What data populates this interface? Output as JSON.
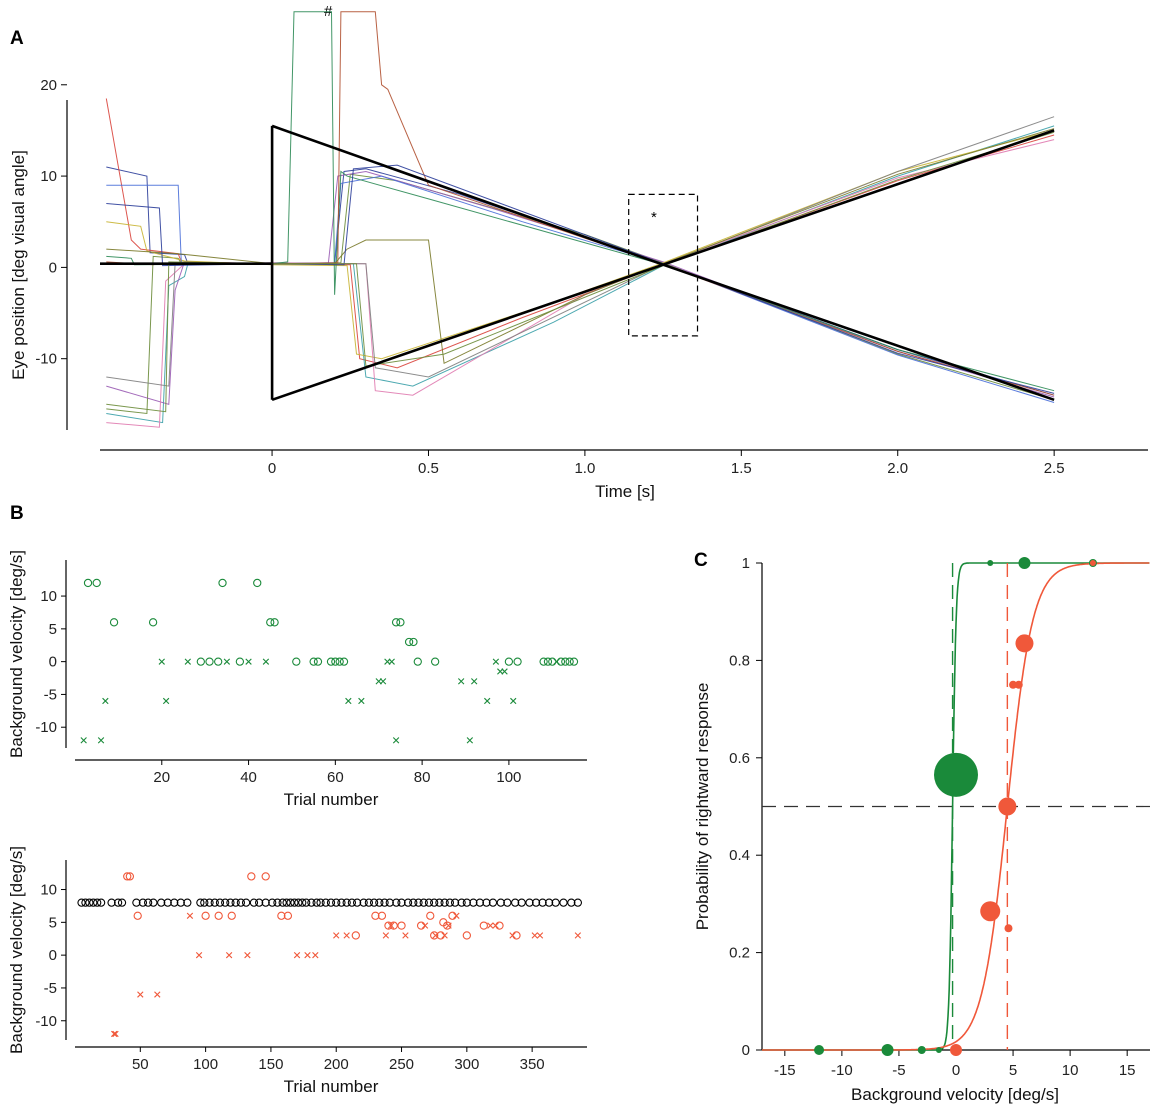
{
  "colors": {
    "green": "#1a8a3a",
    "red": "#f0583a",
    "black": "#000000",
    "axis": "#000000"
  },
  "panels": {
    "A": {
      "label": "A",
      "hash_mark": "#",
      "star_mark": "*"
    },
    "B": {
      "label": "B"
    },
    "C": {
      "label": "C"
    }
  },
  "chart_data": [
    {
      "id": "A",
      "type": "line",
      "title": "",
      "xlabel": "Time [s]",
      "ylabel": "Eye position [deg visual angle]",
      "xlim": [
        -0.55,
        2.8
      ],
      "ylim": [
        -20,
        26
      ],
      "xticks": [
        0,
        0.5,
        1.0,
        1.5,
        2.0,
        2.5
      ],
      "xtick_labels": [
        "0",
        "0.5",
        "1.0",
        "1.5",
        "2.0",
        "2.5"
      ],
      "yticks": [
        -10,
        0,
        10,
        20
      ],
      "ytick_labels": [
        "-10",
        "0",
        "10",
        "20"
      ],
      "stimulus": {
        "fixation": {
          "x": [
            -0.55,
            0.0
          ],
          "y": [
            0.4,
            0.4
          ]
        },
        "jump_up": {
          "x": [
            0.0,
            0.0
          ],
          "y": [
            0.4,
            15.5
          ]
        },
        "jump_down": {
          "x": [
            0.0,
            0.0
          ],
          "y": [
            0.4,
            -14.5
          ]
        },
        "upper_ramp": {
          "x": [
            0.0,
            1.25,
            2.5
          ],
          "y": [
            15.5,
            0.3,
            -14.5
          ]
        },
        "lower_ramp": {
          "x": [
            0.0,
            1.25,
            2.5
          ],
          "y": [
            -14.5,
            0.3,
            15.0
          ]
        }
      },
      "annotation_box": {
        "x": [
          1.14,
          1.36
        ],
        "y": [
          -7.5,
          8.0
        ]
      },
      "trace_colors": [
        "#2c3e9a",
        "#6b8c3a",
        "#d9443c",
        "#3aa0a8",
        "#9a5cb4",
        "#c8b432",
        "#e07bb0",
        "#4a6fd8",
        "#808080",
        "#2e8b57",
        "#b05030",
        "#7a7a2a"
      ],
      "traces": [
        {
          "x": [
            -0.53,
            -0.4,
            -0.39,
            -0.28,
            -0.27,
            0.0,
            0.2,
            0.23,
            0.3,
            0.6,
            1.25,
            2.0,
            2.5
          ],
          "y": [
            11.0,
            10.0,
            1.6,
            1.4,
            0.5,
            0.4,
            0.4,
            10.5,
            10.8,
            8.0,
            0.4,
            -9.0,
            -14.0
          ]
        },
        {
          "x": [
            -0.53,
            -0.4,
            -0.38,
            -0.3,
            -0.29,
            0.0,
            0.22,
            0.25,
            0.4,
            1.0,
            1.25,
            2.0,
            2.5
          ],
          "y": [
            -15.5,
            -16.0,
            1.2,
            1.0,
            0.4,
            0.4,
            0.5,
            10.2,
            9.5,
            3.6,
            0.5,
            -9.5,
            -14.5
          ]
        },
        {
          "x": [
            -0.53,
            -0.45,
            -0.42,
            -0.3,
            -0.29,
            0.0,
            0.25,
            0.28,
            0.4,
            0.8,
            1.25,
            2.0,
            2.5
          ],
          "y": [
            18.5,
            3.0,
            2.0,
            1.5,
            0.6,
            0.4,
            0.3,
            -10.0,
            -11.0,
            -5.5,
            0.3,
            9.5,
            14.5
          ]
        },
        {
          "x": [
            -0.53,
            -0.35,
            -0.33,
            -0.28,
            -0.27,
            0.0,
            0.26,
            0.3,
            0.45,
            0.9,
            1.25,
            2.0,
            2.5
          ],
          "y": [
            -16.0,
            -17.0,
            -2.0,
            -1.0,
            0.3,
            0.5,
            0.4,
            -12.0,
            -13.0,
            -6.0,
            0.2,
            10.0,
            15.5
          ]
        },
        {
          "x": [
            -0.53,
            -0.33,
            -0.31,
            -0.28,
            0.0,
            0.18,
            0.21,
            0.3,
            0.7,
            1.25,
            2.0,
            2.5
          ],
          "y": [
            -13.0,
            -15.0,
            -2.5,
            0.6,
            0.4,
            0.5,
            10.0,
            10.5,
            6.5,
            0.6,
            -9.2,
            -14.2
          ]
        },
        {
          "x": [
            -0.53,
            -0.42,
            -0.4,
            -0.28,
            0.0,
            0.24,
            0.27,
            0.35,
            0.9,
            1.25,
            2.0,
            2.5
          ],
          "y": [
            5.0,
            4.5,
            1.8,
            0.7,
            0.3,
            0.2,
            -9.5,
            -10.0,
            -3.8,
            0.5,
            10.5,
            15.0
          ]
        },
        {
          "x": [
            -0.53,
            -0.36,
            -0.34,
            -0.28,
            0.0,
            0.3,
            0.33,
            0.45,
            1.0,
            1.25,
            2.0,
            2.5
          ],
          "y": [
            -17.0,
            -17.5,
            -1.5,
            0.4,
            0.5,
            0.4,
            -13.5,
            -14.0,
            -3.0,
            0.4,
            9.8,
            14.0
          ]
        },
        {
          "x": [
            -0.53,
            -0.3,
            -0.29,
            0.0,
            0.2,
            0.22,
            0.35,
            0.8,
            1.25,
            2.0,
            2.5
          ],
          "y": [
            9.0,
            9.0,
            0.5,
            0.4,
            0.5,
            9.2,
            10.0,
            5.0,
            0.4,
            -9.6,
            -14.8
          ]
        },
        {
          "x": [
            -0.53,
            -0.33,
            -0.31,
            0.0,
            0.3,
            0.33,
            0.5,
            1.25,
            2.0,
            2.5
          ],
          "y": [
            -12.0,
            -13.0,
            0.4,
            0.4,
            0.4,
            -11.0,
            -12.0,
            0.3,
            10.5,
            16.5
          ]
        },
        {
          "x": [
            -0.53,
            -0.45,
            -0.44,
            0.0,
            0.05,
            0.07,
            0.19,
            0.2,
            0.22,
            0.24,
            0.5,
            1.25,
            2.0,
            2.5
          ],
          "y": [
            1.2,
            1.0,
            0.3,
            0.4,
            0.6,
            28.0,
            28.0,
            -3.0,
            10.5,
            10.0,
            7.5,
            0.3,
            -9.0,
            -13.5
          ]
        },
        {
          "x": [
            -0.53,
            -0.38,
            -0.36,
            0.0,
            0.21,
            0.22,
            0.33,
            0.35,
            0.37,
            0.5,
            1.25,
            2.0,
            2.5
          ],
          "y": [
            0.6,
            0.3,
            0.4,
            0.4,
            0.5,
            28.0,
            28.0,
            20.0,
            19.5,
            9.0,
            0.3,
            -9.2,
            -14.0
          ]
        },
        {
          "x": [
            -0.53,
            -0.3,
            0.0,
            0.2,
            0.24,
            0.3,
            0.5,
            0.55,
            1.0,
            1.25,
            2.0,
            2.5
          ],
          "y": [
            2.0,
            1.5,
            0.4,
            0.4,
            2.0,
            3.0,
            3.0,
            -10.5,
            -3.0,
            0.4,
            10.2,
            15.2
          ]
        },
        {
          "x": [
            -0.53,
            -0.36,
            -0.35,
            0.0,
            0.23,
            0.26,
            0.4,
            1.25,
            2.0,
            2.5
          ],
          "y": [
            7.0,
            6.5,
            0.2,
            0.4,
            0.3,
            10.8,
            11.2,
            0.4,
            -9.4,
            -13.8
          ]
        },
        {
          "x": [
            -0.53,
            -0.34,
            -0.33,
            0.0,
            0.27,
            0.3,
            0.55,
            1.25,
            2.0,
            2.5
          ],
          "y": [
            -15.0,
            -15.8,
            0.6,
            0.4,
            0.4,
            -10.8,
            -9.5,
            0.2,
            9.6,
            14.8
          ]
        }
      ]
    },
    {
      "id": "B-top",
      "type": "scatter",
      "xlabel": "Trial number",
      "ylabel": "Background velocity [deg/s]",
      "xlim": [
        0,
        118
      ],
      "ylim": [
        -15,
        15.5
      ],
      "xticks": [
        20,
        40,
        60,
        80,
        100
      ],
      "xtick_labels": [
        "20",
        "40",
        "60",
        "80",
        "100"
      ],
      "yticks": [
        -10,
        -5,
        0,
        5,
        10
      ],
      "ytick_labels": [
        "-10",
        "-5",
        "0",
        "5",
        "10"
      ],
      "series": [
        {
          "name": "circle",
          "marker": "o",
          "color": "#1a8a3a",
          "x": [
            3,
            5,
            9,
            18,
            29,
            31,
            33,
            34,
            38,
            42,
            45,
            46,
            51,
            55,
            56,
            59,
            60,
            61,
            62,
            74,
            75,
            77,
            78,
            79,
            83,
            100,
            102,
            108,
            109,
            110,
            112,
            113,
            114,
            115
          ],
          "y": [
            12,
            12,
            6,
            6,
            0,
            0,
            0,
            12,
            0,
            12,
            6,
            6,
            0,
            0,
            0,
            0,
            0,
            0,
            0,
            6,
            6,
            3,
            3,
            0,
            0,
            0,
            0,
            0,
            0,
            0,
            0,
            0,
            0,
            0
          ]
        },
        {
          "name": "cross",
          "marker": "x",
          "color": "#1a8a3a",
          "x": [
            2,
            6,
            7,
            20,
            21,
            26,
            35,
            40,
            44,
            63,
            66,
            70,
            71,
            72,
            73,
            74,
            89,
            91,
            92,
            95,
            97,
            98,
            99,
            101,
            111
          ],
          "y": [
            -12,
            -12,
            -6,
            0,
            -6,
            0,
            0,
            0,
            0,
            -6,
            -6,
            -3,
            -3,
            0,
            0,
            -12,
            -3,
            -12,
            -3,
            -6,
            0,
            -1.5,
            -1.5,
            -6,
            0
          ]
        }
      ]
    },
    {
      "id": "B-bottom",
      "type": "scatter",
      "xlabel": "Trial number",
      "ylabel": "Background velocity [deg/s]",
      "xlim": [
        0,
        392
      ],
      "ylim": [
        -14,
        14.5
      ],
      "xticks": [
        50,
        100,
        150,
        200,
        250,
        300,
        350
      ],
      "xtick_labels": [
        "50",
        "100",
        "150",
        "200",
        "250",
        "300",
        "350"
      ],
      "yticks": [
        -10,
        -5,
        0,
        5,
        10
      ],
      "ytick_labels": [
        "-10",
        "-5",
        "0",
        "5",
        "10"
      ],
      "series": [
        {
          "name": "circle-black",
          "marker": "o",
          "color": "#000000",
          "x": [
            5,
            8,
            11,
            14,
            17,
            20,
            28,
            33,
            36,
            47,
            52,
            56,
            60,
            66,
            71,
            76,
            81,
            86,
            96,
            99,
            103,
            107,
            111,
            115,
            119,
            123,
            127,
            131,
            137,
            141,
            146,
            151,
            155,
            159,
            162,
            165,
            168,
            171,
            174,
            177,
            181,
            185,
            188,
            192,
            196,
            200,
            204,
            208,
            212,
            216,
            221,
            225,
            229,
            233,
            237,
            241,
            246,
            250,
            255,
            259,
            263,
            267,
            271,
            275,
            279,
            283,
            287,
            291,
            296,
            300,
            305,
            310,
            315,
            320,
            326,
            331,
            337,
            342,
            348,
            353,
            358,
            363,
            368,
            374,
            380,
            385
          ],
          "y": [
            8,
            8,
            8,
            8,
            8,
            8,
            8,
            8,
            8,
            8,
            8,
            8,
            8,
            8,
            8,
            8,
            8,
            8,
            8,
            8,
            8,
            8,
            8,
            8,
            8,
            8,
            8,
            8,
            8,
            8,
            8,
            8,
            8,
            8,
            8,
            8,
            8,
            8,
            8,
            8,
            8,
            8,
            8,
            8,
            8,
            8,
            8,
            8,
            8,
            8,
            8,
            8,
            8,
            8,
            8,
            8,
            8,
            8,
            8,
            8,
            8,
            8,
            8,
            8,
            8,
            8,
            8,
            8,
            8,
            8,
            8,
            8,
            8,
            8,
            8,
            8,
            8,
            8,
            8,
            8,
            8,
            8,
            8,
            8,
            8,
            8
          ]
        },
        {
          "name": "circle-red",
          "marker": "o",
          "color": "#f0583a",
          "x": [
            40,
            42,
            48,
            100,
            110,
            120,
            135,
            146,
            158,
            163,
            215,
            230,
            235,
            240,
            244,
            250,
            265,
            272,
            275,
            280,
            282,
            285,
            289,
            300,
            313,
            325,
            338
          ],
          "y": [
            12,
            12,
            6,
            6,
            6,
            6,
            12,
            12,
            6,
            6,
            3,
            6,
            6,
            4.5,
            4.5,
            4.5,
            4.5,
            6,
            3,
            3,
            5,
            4.5,
            6,
            3,
            4.5,
            4.5,
            3
          ]
        },
        {
          "name": "cross-red",
          "marker": "x",
          "color": "#f0583a",
          "x": [
            30,
            31,
            50,
            63,
            88,
            95,
            118,
            132,
            170,
            178,
            184,
            200,
            208,
            238,
            242,
            253,
            268,
            276,
            283,
            286,
            292,
            318,
            322,
            335,
            352,
            356,
            385
          ],
          "y": [
            -12,
            -12,
            -6,
            -6,
            6,
            0,
            0,
            0,
            0,
            0,
            0,
            3,
            3,
            3,
            4.5,
            3,
            4.5,
            3,
            3,
            4.5,
            6,
            4.5,
            4.5,
            3,
            3,
            3,
            3
          ]
        }
      ]
    },
    {
      "id": "C",
      "type": "scatter",
      "xlabel": "Background velocity [deg/s]",
      "ylabel": "Probability of rightward response",
      "xlim": [
        -17,
        17
      ],
      "ylim": [
        0,
        1
      ],
      "xticks": [
        -15,
        -10,
        -5,
        0,
        5,
        10,
        15
      ],
      "xtick_labels": [
        "-15",
        "-10",
        "-5",
        "0",
        "5",
        "10",
        "15"
      ],
      "yticks": [
        0,
        0.2,
        0.4,
        0.6,
        0.8,
        1
      ],
      "ytick_labels": [
        "0",
        "0.2",
        "0.4",
        "0.6",
        "0.8",
        "1"
      ],
      "threshold_line": 0.5,
      "series": [
        {
          "name": "green",
          "color": "#1a8a3a",
          "pse": -0.3,
          "slope": 6.5,
          "x": [
            -12,
            -6,
            -3,
            -1.5,
            0,
            3,
            6,
            12
          ],
          "y": [
            0,
            0,
            0,
            0,
            0.565,
            1,
            1,
            1
          ],
          "size": [
            5,
            6,
            4,
            3,
            22,
            3,
            6,
            4
          ]
        },
        {
          "name": "red",
          "color": "#f0583a",
          "pse": 4.5,
          "slope": 0.9,
          "x": [
            0,
            3,
            4.5,
            4.6,
            5,
            5.5,
            6,
            12
          ],
          "y": [
            0,
            0.285,
            0.5,
            0.25,
            0.75,
            0.75,
            0.835,
            1
          ],
          "size": [
            6,
            10,
            9,
            4,
            4,
            4,
            9,
            3
          ]
        }
      ]
    }
  ]
}
